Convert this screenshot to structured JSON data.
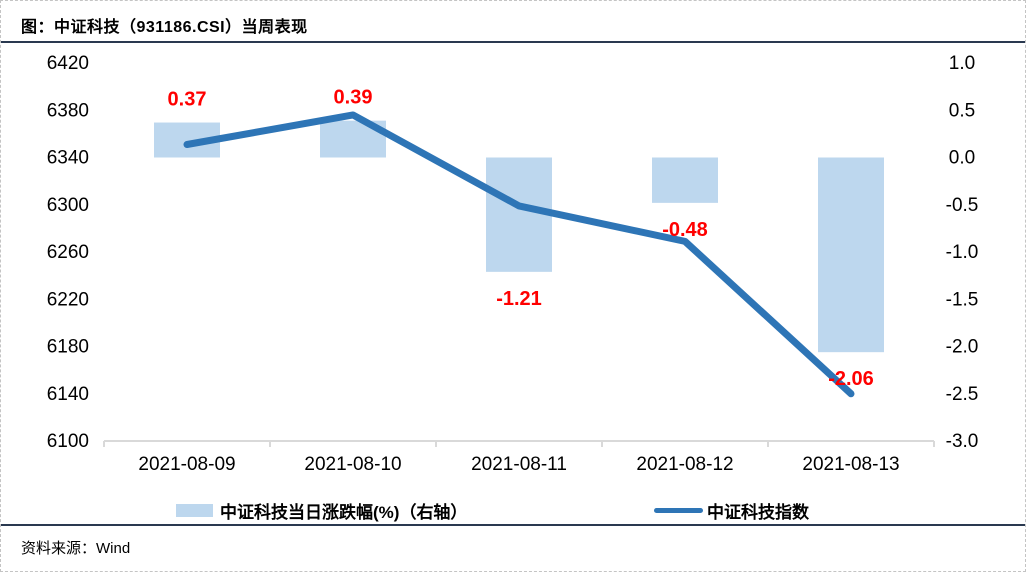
{
  "title": "图：中证科技（931186.CSI）当周表现",
  "source": {
    "label": "资料来源：",
    "value": "Wind"
  },
  "legend": {
    "bar_label": "中证科技当日涨跌幅(%)（右轴）",
    "line_label": "中证科技指数"
  },
  "colors": {
    "bar_fill": "#BDD7EE",
    "line_stroke": "#2E75B6",
    "data_label": "#FF0000",
    "axis_line": "#D9D9D9",
    "tick_text": "#000000",
    "rule": "#2a3950"
  },
  "chart_data": {
    "type": "bar+line combo",
    "categories": [
      "2021-08-09",
      "2021-08-10",
      "2021-08-11",
      "2021-08-12",
      "2021-08-13"
    ],
    "series": [
      {
        "name": "中证科技当日涨跌幅(%)（右轴）",
        "type": "bar",
        "axis": "right",
        "values": [
          0.37,
          0.39,
          -1.21,
          -0.48,
          -2.06
        ],
        "labels": [
          "0.37",
          "0.39",
          "-1.21",
          "-0.48",
          "-2.06"
        ]
      },
      {
        "name": "中证科技指数",
        "type": "line",
        "axis": "left",
        "values": [
          6351,
          6376,
          6299,
          6269,
          6140
        ]
      }
    ],
    "left_axis": {
      "min": 6100,
      "max": 6420,
      "step": 40,
      "tick_labels": [
        "6420",
        "6380",
        "6340",
        "6300",
        "6260",
        "6220",
        "6180",
        "6140",
        "6100"
      ]
    },
    "right_axis": {
      "min": -3.0,
      "max": 1.0,
      "step": 0.5,
      "tick_labels": [
        "1.0",
        "0.5",
        "0.0",
        "-0.5",
        "-1.0",
        "-1.5",
        "-2.0",
        "-2.5",
        "-3.0"
      ]
    },
    "grid": false,
    "legend_position": "bottom"
  }
}
